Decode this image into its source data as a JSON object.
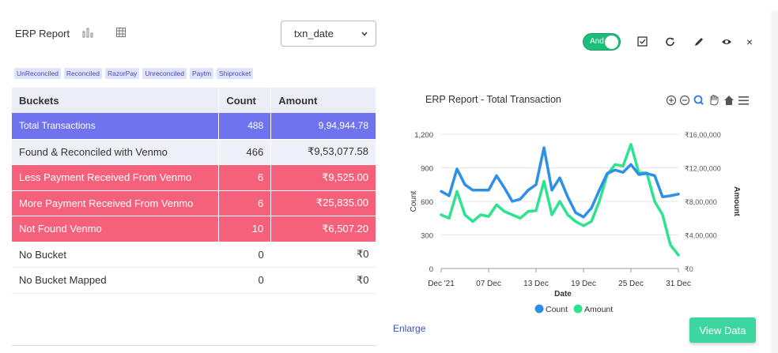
{
  "header": {
    "title": "ERP Report",
    "select_value": "txn_date",
    "toggle_label": "And",
    "close_label": "×"
  },
  "chips": [
    "UnReconciled",
    "Reconciled",
    "RazorPay",
    "Unreconciled",
    "Paytm",
    "Shiprocket"
  ],
  "table": {
    "headers": [
      "Buckets",
      "Count",
      "Amount"
    ],
    "rows": [
      {
        "bucket": "Total  Transactions",
        "count": "488",
        "amount": "9,94,944.78"
      },
      {
        "bucket": "Found & Reconciled with Venmo",
        "count": "466",
        "amount": "₹9,53,077.58"
      },
      {
        "bucket": "Less Payment Received From Venmo",
        "count": "6",
        "amount": "₹9,525.00"
      },
      {
        "bucket": "More Payment Received From Venmo",
        "count": "6",
        "amount": "₹25,835.00"
      },
      {
        "bucket": " Not Found Venmo",
        "count": "10",
        "amount": "₹6,507.20"
      },
      {
        "bucket": "No Bucket",
        "count": "0",
        "amount": "₹0"
      },
      {
        "bucket": "No Bucket Mapped",
        "count": "0",
        "amount": "₹0"
      }
    ]
  },
  "colors": {
    "total_row": "#6f73ee",
    "red_row": "#f5617a",
    "count_series": "#2e8fe8",
    "amount_series": "#2ee38f",
    "toggle": "#1dbe7a"
  },
  "footer": {
    "enlarge": "Enlarge",
    "view_data": "View Data"
  },
  "chart_data": {
    "type": "line",
    "title": "ERP Report - Total Transaction",
    "xlabel": "Date",
    "ylabel": "Count",
    "y2label": "Amount",
    "x_tick_labels": [
      "Dec '21",
      "07 Dec",
      "13 Dec",
      "19 Dec",
      "25 Dec",
      "31 Dec"
    ],
    "y_ticks": [
      "0",
      "300",
      "600",
      "900",
      "1,200"
    ],
    "y2_ticks": [
      "₹0",
      "₹4,00,000",
      "₹8,00,000",
      "₹12,00,000",
      "₹16,00,000"
    ],
    "ylim": [
      0,
      1200
    ],
    "y2lim": [
      0,
      1600000
    ],
    "x": [
      1,
      2,
      3,
      4,
      5,
      6,
      7,
      8,
      9,
      10,
      11,
      12,
      13,
      14,
      15,
      16,
      17,
      18,
      19,
      20,
      21,
      22,
      23,
      24,
      25,
      26,
      27,
      28,
      29,
      30,
      31
    ],
    "series": [
      {
        "name": "Count",
        "axis": "left",
        "values": [
          690,
          650,
          890,
          750,
          700,
          700,
          700,
          830,
          720,
          600,
          620,
          700,
          750,
          1080,
          700,
          810,
          640,
          500,
          460,
          540,
          700,
          850,
          880,
          860,
          930,
          840,
          850,
          830,
          640,
          650,
          665
        ]
      },
      {
        "name": "Amount",
        "axis": "right",
        "values": [
          640000,
          600000,
          920000,
          640000,
          560000,
          640000,
          620000,
          760000,
          680000,
          640000,
          600000,
          680000,
          690000,
          1040000,
          640000,
          800000,
          640000,
          560000,
          510000,
          560000,
          800000,
          1120000,
          1240000,
          1220000,
          1480000,
          1140000,
          1140000,
          800000,
          640000,
          280000,
          160000
        ]
      }
    ],
    "legend_position": "bottom"
  }
}
